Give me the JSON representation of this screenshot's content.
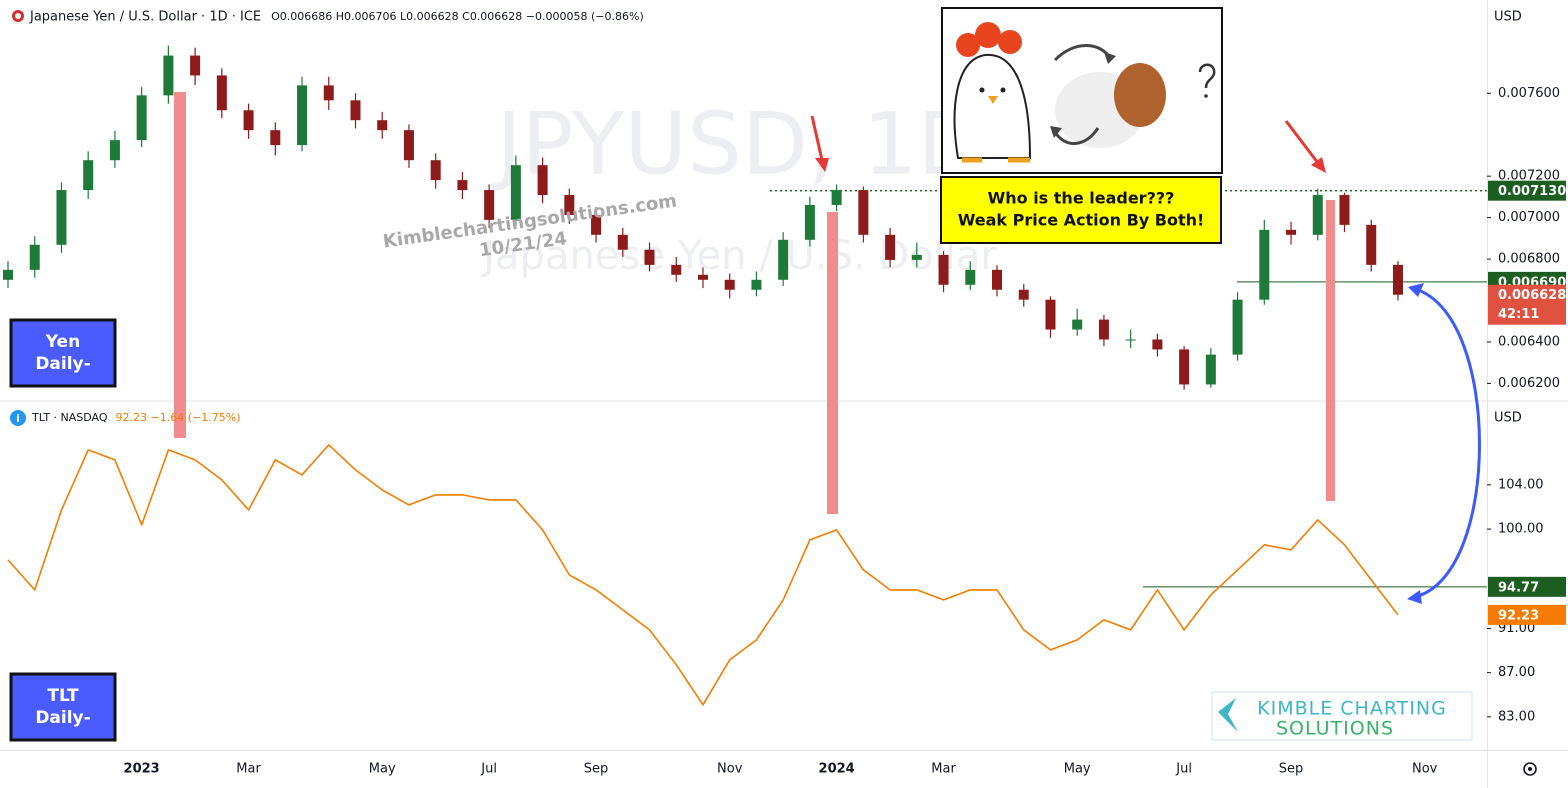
{
  "chart_data": [
    {
      "type": "candlestick",
      "title": "Japanese Yen / U.S. Dollar · 1D · ICE",
      "subtitle": "O0.006686 H0.006706 L0.006628 C0.006628 −0.000058 (−0.86%)",
      "watermark": "JPYUSD, 1D",
      "watermark_subtitle": "Japanese Yen / U.S. Dollar",
      "currency": "USD",
      "up_color": "#1f7a3a",
      "down_color": "#8e1b1b",
      "level_color": "#1b5e20",
      "last_color": "#e0513f",
      "categories": [
        null,
        null,
        null,
        null,
        null,
        "2023",
        null,
        null,
        null,
        "Mar",
        null,
        null,
        null,
        null,
        "May",
        null,
        null,
        null,
        "Jul",
        null,
        null,
        null,
        "Sep",
        null,
        null,
        null,
        null,
        "Nov",
        null,
        null,
        null,
        "2024",
        null,
        null,
        null,
        "Mar",
        null,
        null,
        null,
        null,
        "May",
        null,
        null,
        null,
        "Jul",
        null,
        null,
        null,
        "Sep",
        null,
        null,
        null,
        null,
        "Nov"
      ],
      "open": [
        0.0067,
        0.006748,
        0.006869,
        0.007133,
        0.007277,
        0.007374,
        0.00759,
        0.007782,
        0.007686,
        0.007518,
        0.007422,
        0.00735,
        0.007638,
        0.007566,
        0.00747,
        0.007422,
        0.007277,
        0.007181,
        0.007133,
        0.006989,
        0.007253,
        0.007109,
        0.007013,
        0.006917,
        0.006845,
        0.006772,
        0.006724,
        0.0067,
        0.006652,
        0.0067,
        0.006893,
        0.007061,
        0.007133,
        0.006917,
        0.006796,
        0.00682,
        0.006676,
        0.006748,
        0.006652,
        0.006604,
        0.00646,
        0.006508,
        0.006412,
        0.006412,
        0.006364,
        0.006195,
        0.006339,
        0.006604,
        0.006941,
        0.006917,
        0.007109,
        0.006965,
        0.006772,
        null
      ],
      "high": [
        0.00679,
        0.00691,
        0.00717,
        0.00732,
        0.00742,
        0.00763,
        0.00783,
        0.00782,
        0.00772,
        0.00755,
        0.00746,
        0.00768,
        0.00768,
        0.0076,
        0.00751,
        0.00745,
        0.00731,
        0.00722,
        0.00716,
        0.0073,
        0.00729,
        0.00714,
        0.00705,
        0.00695,
        0.00688,
        0.00681,
        0.00676,
        0.00673,
        0.00674,
        0.00693,
        0.0071,
        0.00716,
        0.00715,
        0.00695,
        0.00688,
        0.00684,
        0.00679,
        0.00677,
        0.00668,
        0.00662,
        0.00656,
        0.00653,
        0.00646,
        0.00644,
        0.00638,
        0.00637,
        0.00664,
        0.00699,
        0.00698,
        0.00714,
        0.00712,
        0.00699,
        0.00679,
        null
      ],
      "low": [
        0.00666,
        0.00671,
        0.00683,
        0.00709,
        0.00724,
        0.00734,
        0.00755,
        0.00764,
        0.00748,
        0.00738,
        0.0073,
        0.00732,
        0.00752,
        0.00743,
        0.00738,
        0.00724,
        0.00714,
        0.00709,
        0.00695,
        0.00696,
        0.00707,
        0.00697,
        0.00688,
        0.00681,
        0.00674,
        0.00669,
        0.00666,
        0.00661,
        0.00662,
        0.00667,
        0.00686,
        0.00703,
        0.00688,
        0.00676,
        0.00676,
        0.00664,
        0.00665,
        0.00662,
        0.00657,
        0.00642,
        0.00643,
        0.00638,
        0.00637,
        0.00633,
        0.00617,
        0.00618,
        0.00631,
        0.00658,
        0.00687,
        0.00689,
        0.00693,
        0.00674,
        0.0066,
        null
      ],
      "close": [
        0.006748,
        0.006869,
        0.007133,
        0.007277,
        0.007374,
        0.00759,
        0.007782,
        0.007686,
        0.007518,
        0.007422,
        0.00735,
        0.007638,
        0.007566,
        0.00747,
        0.007422,
        0.007277,
        0.007181,
        0.007133,
        0.006989,
        0.007253,
        0.007109,
        0.007013,
        0.006917,
        0.006845,
        0.006772,
        0.006724,
        0.0067,
        0.006652,
        0.0067,
        0.006893,
        0.007061,
        0.007133,
        0.006917,
        0.006796,
        0.00682,
        0.006676,
        0.006748,
        0.006652,
        0.006604,
        0.00646,
        0.006508,
        0.006412,
        0.006412,
        0.006364,
        0.006195,
        0.006339,
        0.006604,
        0.006941,
        0.006917,
        0.007109,
        0.006965,
        0.006772,
        0.006628,
        null
      ],
      "ylim": [
        0.00612,
        0.00805
      ],
      "yticks": [
        {
          "value": 0.0062,
          "label": "0.006200"
        },
        {
          "value": 0.0064,
          "label": "0.006400"
        },
        {
          "value": 0.0068,
          "label": "0.006800"
        },
        {
          "value": 0.007,
          "label": "0.007000"
        },
        {
          "value": 0.0072,
          "label": "0.007200"
        },
        {
          "value": 0.0076,
          "label": "0.007600"
        }
      ],
      "levels": [
        {
          "value": 0.00713,
          "label": "0.007130",
          "style": "dotted"
        },
        {
          "value": 0.00669,
          "label": "0.006690",
          "style": "solid"
        }
      ],
      "countdown": "42:11",
      "pane_label": [
        "Yen",
        "Daily-"
      ]
    },
    {
      "type": "line",
      "title": "TLT · NASDAQ",
      "subtitle": "92.23 −1.64 (−1.75%)",
      "currency": "USD",
      "color": "#f57c00",
      "level_color": "#1b5e20",
      "values": [
        97.21,
        94.49,
        101.73,
        107.16,
        106.26,
        100.38,
        107.16,
        106.26,
        104.45,
        101.73,
        106.26,
        104.9,
        107.62,
        105.35,
        103.54,
        102.19,
        103.09,
        103.09,
        102.64,
        102.64,
        99.92,
        95.85,
        94.49,
        92.68,
        90.87,
        87.71,
        84.09,
        88.16,
        89.97,
        93.59,
        99.02,
        99.92,
        96.3,
        94.49,
        94.49,
        93.59,
        94.49,
        94.49,
        90.87,
        89.06,
        89.97,
        91.78,
        90.87,
        94.49,
        90.87,
        94.04,
        96.3,
        98.57,
        98.11,
        100.83,
        98.57,
        95.4,
        92.23,
        null
      ],
      "ylim": [
        80,
        111.5
      ],
      "yticks": [
        {
          "value": 83,
          "label": "83.00"
        },
        {
          "value": 87,
          "label": "87.00"
        },
        {
          "value": 91,
          "label": "91.00"
        },
        {
          "value": 100,
          "label": "100.00"
        },
        {
          "value": 104,
          "label": "104.00"
        }
      ],
      "levels": [
        {
          "value": 94.77,
          "style": "solid"
        }
      ],
      "pane_label": [
        "TLT",
        "Daily-"
      ]
    }
  ],
  "annotation": {
    "lines": [
      "Who is the leader???",
      "Weak Price Action By Both!"
    ]
  },
  "watermark": {
    "site": "Kimblechartingsolutions.com",
    "date": "10/21/24"
  },
  "logo": {
    "lines": [
      "KIMBLE CHARTING",
      "SOLUTIONS"
    ]
  }
}
